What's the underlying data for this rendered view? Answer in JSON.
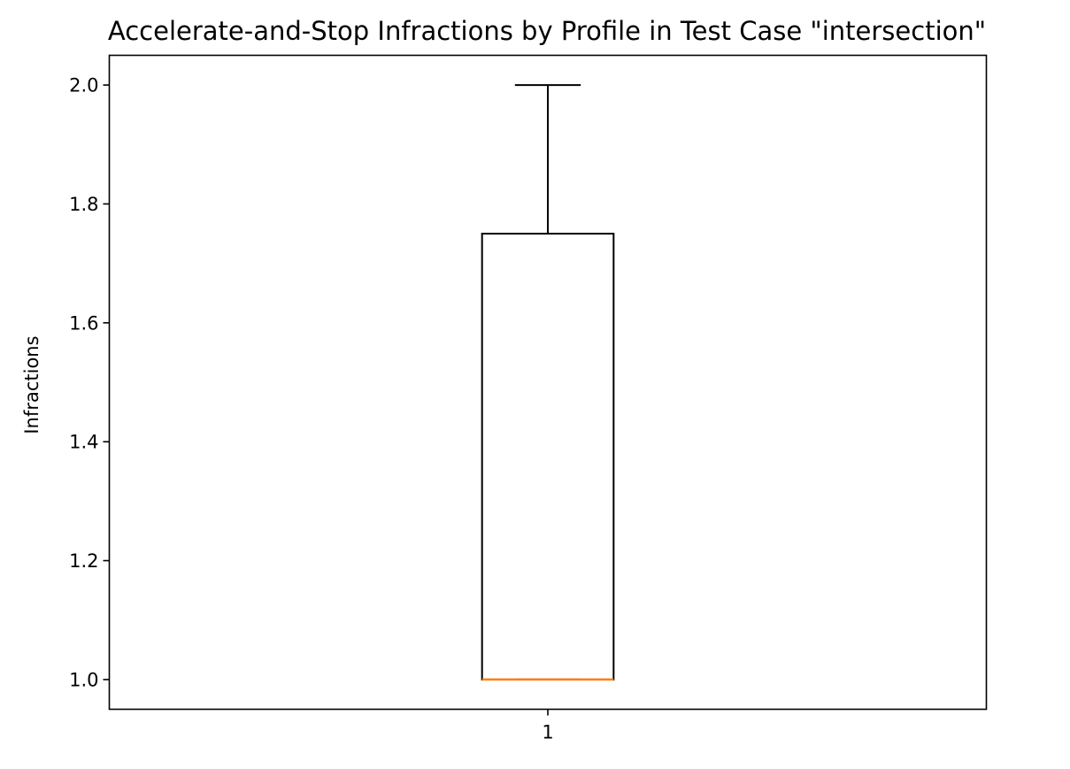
{
  "chart_data": {
    "type": "box",
    "title": "Accelerate-and-Stop Infractions by Profile in Test Case \"intersection\"",
    "xlabel": "",
    "ylabel": "Infractions",
    "categories": [
      "1"
    ],
    "boxes": [
      {
        "category": "1",
        "whisker_low": 1.0,
        "q1": 1.0,
        "median": 1.0,
        "q3": 1.75,
        "whisker_high": 2.0
      }
    ],
    "ylim": [
      0.95,
      2.05
    ],
    "yticks": [
      1.0,
      1.2,
      1.4,
      1.6,
      1.8,
      2.0
    ],
    "ytick_labels": [
      "1.0",
      "1.2",
      "1.4",
      "1.6",
      "1.8",
      "2.0"
    ],
    "grid": false,
    "legend": "none",
    "colors": {
      "box": "#000000",
      "median": "#ff7f0e",
      "axes": "#000000",
      "background": "#ffffff"
    }
  }
}
